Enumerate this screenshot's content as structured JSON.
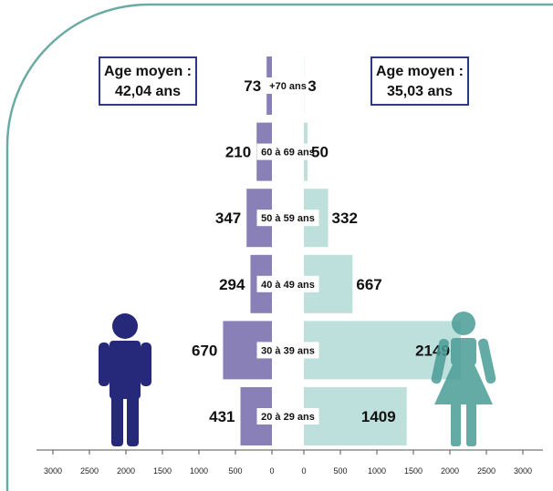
{
  "chart_data": {
    "type": "bar",
    "categories": [
      "+70 ans",
      "60 à 69 ans",
      "50 à 59 ans",
      "40 à 49 ans",
      "30 à 39 ans",
      "20 à 29 ans"
    ],
    "series": [
      {
        "values": [
          73,
          210,
          347,
          294,
          670,
          431
        ],
        "color": "#8a80b8"
      },
      {
        "values": [
          3,
          50,
          332,
          667,
          2149,
          1409
        ],
        "color": "#bde0dc"
      }
    ],
    "xlim": [
      0,
      3000
    ],
    "x_ticks_left": [
      "3000",
      "2500",
      "2000",
      "1500",
      "1000",
      "500",
      "0"
    ],
    "x_ticks_right": [
      "0",
      "500",
      "1000",
      "1500",
      "2000",
      "2500",
      "3000"
    ],
    "grid": false
  },
  "boxes": {
    "men": {
      "line1": "Age moyen :",
      "line2": "42,04 ans"
    },
    "women": {
      "line1": "Age moyen :",
      "line2": "35,03 ans"
    }
  },
  "colors": {
    "frame": "#6aaba5",
    "man_icon": "#26287a",
    "woman_icon": "#4a9d96",
    "box_border": "#2b3a87",
    "axis": "#555555"
  }
}
